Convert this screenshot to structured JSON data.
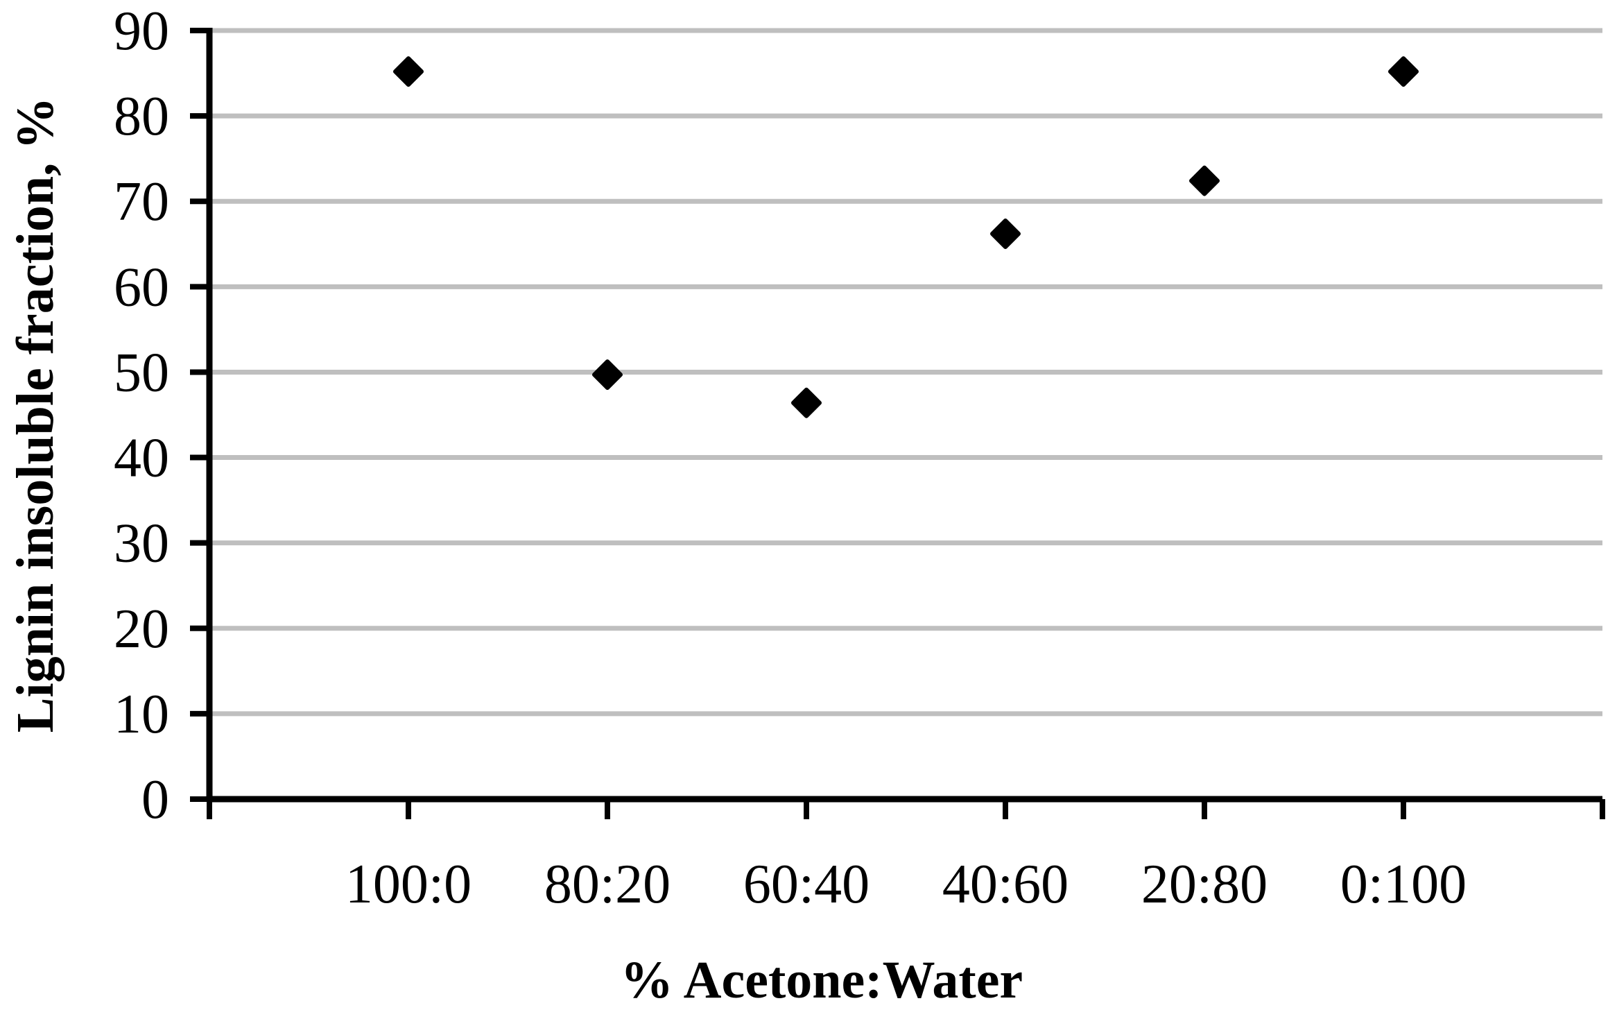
{
  "chart_data": {
    "type": "scatter",
    "title": "",
    "xlabel": "% Acetone:Water",
    "ylabel": "Lignin insoluble fraction, %",
    "categories": [
      "100:0",
      "80:20",
      "60:40",
      "40:60",
      "20:80",
      "0:100"
    ],
    "values": [
      85.2,
      49.7,
      46.4,
      66.2,
      72.4,
      85.2
    ],
    "series": [
      {
        "name": "Lignin insoluble fraction",
        "values": [
          85.2,
          49.7,
          46.4,
          66.2,
          72.4,
          85.2
        ]
      }
    ],
    "ylim": [
      0,
      90
    ],
    "yticks": [
      0,
      10,
      20,
      30,
      40,
      50,
      60,
      70,
      80,
      90
    ],
    "ytick_interval": 10,
    "grid": "horizontal-only",
    "legend_position": "none",
    "marker": {
      "shape": "diamond",
      "color": "#000000",
      "size": 46
    },
    "colors": {
      "axis": "#000000",
      "gridline": "#bfbfbf",
      "text": "#000000",
      "background": "#ffffff"
    }
  }
}
